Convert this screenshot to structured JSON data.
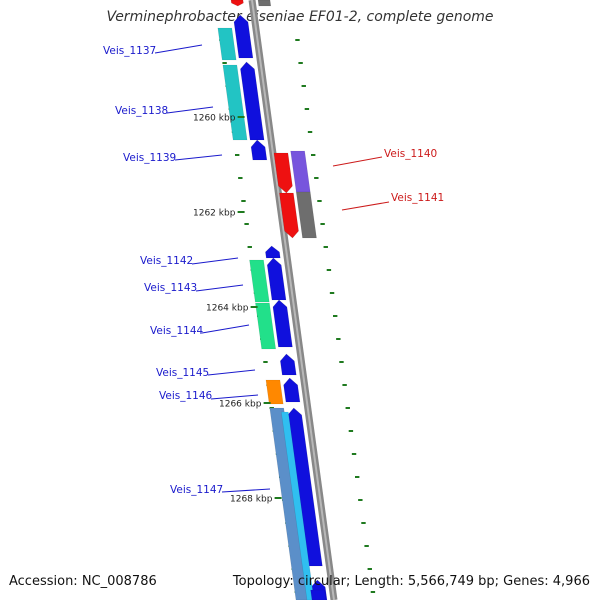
{
  "title": "Verminephrobacter eiseniae EF01-2, complete genome",
  "footer": {
    "accession": "Accession: NC_008786",
    "summary": "Topology: circular; Length: 5,566,749 bp; Genes: 4,966"
  },
  "colors": {
    "backbone": "#888888",
    "tick": "#1f7a1f",
    "label_blue": "#1a1acc",
    "label_red": "#cc1a1a",
    "cds_blue": "#1010dd",
    "cds_cyan": "#22c4c4",
    "cds_green": "#22e08a",
    "cds_red": "#ee1111",
    "cds_purple": "#7755dd",
    "cds_gray": "#6e6e6e",
    "cds_orange": "#ff8800",
    "cds_steel": "#5b8fc9",
    "cds_lightblue": "#30bff0"
  },
  "scale": {
    "ticks": [
      {
        "label": "1260 kbp"
      },
      {
        "label": "1262 kbp"
      },
      {
        "label": "1264 kbp"
      },
      {
        "label": "1266 kbp"
      },
      {
        "label": "1268 kbp"
      }
    ]
  },
  "genes": [
    {
      "name": "Veis_1137",
      "strand": "forward"
    },
    {
      "name": "Veis_1138",
      "strand": "forward"
    },
    {
      "name": "Veis_1139",
      "strand": "forward"
    },
    {
      "name": "Veis_1140",
      "strand": "reverse"
    },
    {
      "name": "Veis_1141",
      "strand": "reverse"
    },
    {
      "name": "Veis_1142",
      "strand": "forward"
    },
    {
      "name": "Veis_1143",
      "strand": "forward"
    },
    {
      "name": "Veis_1144",
      "strand": "forward"
    },
    {
      "name": "Veis_1145",
      "strand": "forward"
    },
    {
      "name": "Veis_1146",
      "strand": "forward"
    },
    {
      "name": "Veis_1147",
      "strand": "forward"
    }
  ]
}
